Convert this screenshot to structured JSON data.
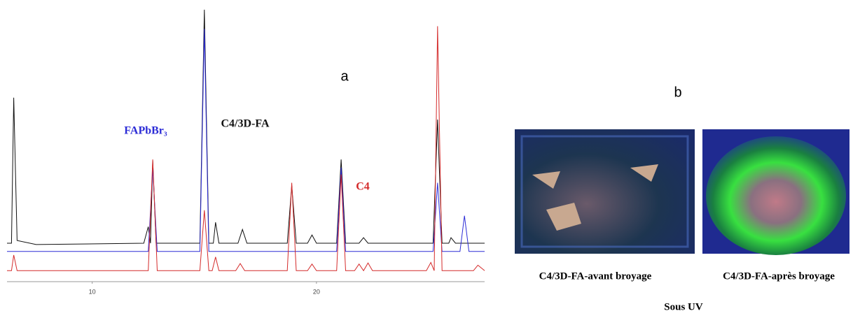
{
  "chart_data": {
    "type": "line",
    "panel_label": "a",
    "xlim": [
      6.2,
      27.5
    ],
    "xticks": [
      10,
      20
    ],
    "ylim": [
      0,
      100
    ],
    "series": [
      {
        "name": "C4/3D-FA",
        "color": "#111111",
        "x": [
          6.2,
          6.4,
          6.5,
          6.65,
          7.5,
          12.3,
          12.5,
          12.6,
          12.7,
          12.85,
          14.8,
          15.0,
          15.2,
          15.4,
          15.5,
          15.65,
          16.5,
          16.7,
          16.9,
          18.7,
          18.9,
          19.1,
          19.6,
          19.8,
          20.0,
          20.9,
          21.1,
          21.3,
          21.9,
          22.1,
          22.3,
          25.2,
          25.4,
          25.6,
          25.9,
          26.0,
          26.2,
          27.5
        ],
        "values": [
          14,
          14,
          67,
          15,
          13.5,
          14,
          20,
          14,
          44,
          14,
          14,
          99,
          14,
          14,
          21.6,
          14,
          14,
          19,
          14,
          14,
          35,
          14,
          14,
          17,
          14,
          14,
          44.5,
          14,
          14,
          16,
          14,
          14,
          59,
          14,
          14,
          16,
          14,
          14
        ]
      },
      {
        "name": "FAPbBr₃",
        "color": "#2b2bd6",
        "x": [
          6.2,
          12.5,
          12.7,
          12.9,
          14.8,
          15.0,
          15.2,
          20.9,
          21.1,
          21.3,
          25.2,
          25.4,
          25.6,
          26.4,
          26.6,
          26.8,
          27.5
        ],
        "values": [
          11,
          11,
          41,
          11,
          11,
          92,
          11,
          11,
          41.5,
          11,
          11,
          36,
          11,
          11,
          24,
          11,
          11
        ]
      },
      {
        "name": "C4",
        "color": "#d42a2a",
        "x": [
          6.2,
          6.4,
          6.5,
          6.65,
          12.5,
          12.7,
          12.9,
          14.8,
          15.0,
          15.2,
          15.35,
          15.5,
          15.65,
          16.4,
          16.6,
          16.8,
          18.7,
          18.9,
          19.1,
          19.6,
          19.8,
          20.0,
          20.9,
          21.1,
          21.3,
          21.7,
          21.9,
          22.1,
          22.3,
          22.5,
          24.9,
          25.1,
          25.25,
          25.4,
          25.6,
          27.0,
          27.2,
          27.5
        ],
        "values": [
          4,
          4,
          9.7,
          4,
          4,
          44.5,
          4,
          4,
          26,
          4,
          4,
          9,
          4,
          4,
          6.6,
          4,
          4,
          36,
          4,
          4,
          6.4,
          4,
          4,
          39,
          4,
          4,
          6.4,
          4,
          6.8,
          4,
          4,
          7,
          4,
          93,
          4,
          4,
          6,
          4
        ]
      }
    ]
  },
  "photos": {
    "panel_label": "b",
    "left_caption": "C4/3D-FA-avant broyage",
    "right_caption": "C4/3D-FA-après broyage",
    "caption": "Sous UV"
  }
}
